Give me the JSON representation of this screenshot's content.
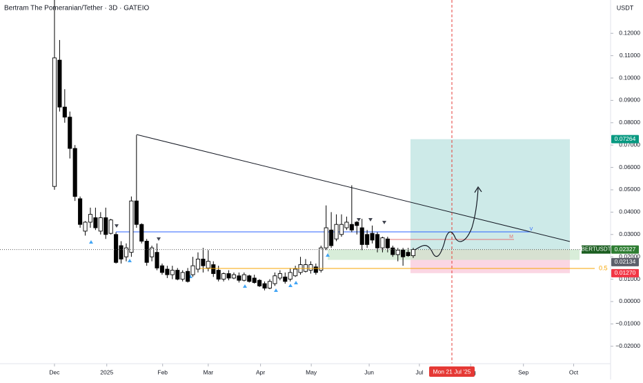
{
  "chart_data": {
    "type": "candlestick",
    "title": "Bertram The Pomeranian/Tether · 3D · GATEIO",
    "y_axis_label": "USDT",
    "open": [
      0.0515,
      0.108,
      0.087,
      0.0825,
      0.0685,
      0.046,
      0.0315,
      0.0355,
      0.0375,
      0.0315,
      0.0375,
      0.0305,
      0.03,
      0.025,
      0.02,
      0.022,
      0.045,
      0.0345,
      0.027,
      0.02,
      0.022,
      0.016,
      0.0145,
      0.012,
      0.014,
      0.01,
      0.0135,
      0.012,
      0.0145,
      0.019,
      0.015,
      0.0165,
      0.014,
      0.01,
      0.0125,
      0.0105,
      0.0115,
      0.0095,
      0.0115,
      0.0105,
      0.0095,
      0.008,
      0.006,
      0.008,
      0.0105,
      0.011,
      0.01,
      0.0115,
      0.013,
      0.0135,
      0.014,
      0.0155,
      0.014,
      0.024,
      0.032,
      0.028,
      0.03,
      0.033,
      0.0345,
      0.0355,
      0.033,
      0.03,
      0.0305,
      0.03,
      0.024,
      0.028,
      0.024,
      0.021,
      0.023,
      0.022,
      0.0205
    ],
    "high": [
      0.135,
      0.117,
      0.095,
      0.085,
      0.07,
      0.047,
      0.036,
      0.042,
      0.042,
      0.04,
      0.042,
      0.037,
      0.031,
      0.027,
      0.026,
      0.047,
      0.0745,
      0.035,
      0.028,
      0.025,
      0.026,
      0.017,
      0.016,
      0.016,
      0.015,
      0.014,
      0.015,
      0.02,
      0.022,
      0.024,
      0.023,
      0.018,
      0.016,
      0.013,
      0.014,
      0.013,
      0.013,
      0.013,
      0.012,
      0.012,
      0.01,
      0.009,
      0.01,
      0.013,
      0.014,
      0.013,
      0.015,
      0.016,
      0.02,
      0.019,
      0.018,
      0.017,
      0.025,
      0.043,
      0.04,
      0.039,
      0.039,
      0.038,
      0.052,
      0.036,
      0.037,
      0.032,
      0.034,
      0.031,
      0.029,
      0.029,
      0.025,
      0.024,
      0.024,
      0.024,
      0.024
    ],
    "low": [
      0.05,
      0.085,
      0.08,
      0.064,
      0.045,
      0.033,
      0.0295,
      0.033,
      0.032,
      0.03,
      0.028,
      0.03,
      0.017,
      0.017,
      0.018,
      0.02,
      0.033,
      0.026,
      0.016,
      0.018,
      0.014,
      0.012,
      0.0105,
      0.01,
      0.0095,
      0.009,
      0.0085,
      0.011,
      0.013,
      0.013,
      0.0135,
      0.011,
      0.009,
      0.009,
      0.0095,
      0.01,
      0.0085,
      0.009,
      0.0085,
      0.008,
      0.0065,
      0.005,
      0.0055,
      0.007,
      0.0095,
      0.008,
      0.009,
      0.011,
      0.012,
      0.013,
      0.0125,
      0.012,
      0.013,
      0.023,
      0.024,
      0.027,
      0.029,
      0.032,
      0.031,
      0.03,
      0.023,
      0.024,
      0.026,
      0.022,
      0.022,
      0.022,
      0.02,
      0.018,
      0.016,
      0.02,
      0.0195
    ],
    "close": [
      0.109,
      0.087,
      0.0825,
      0.0685,
      0.047,
      0.0345,
      0.0355,
      0.039,
      0.033,
      0.0375,
      0.03,
      0.0365,
      0.0175,
      0.019,
      0.024,
      0.045,
      0.0345,
      0.027,
      0.0175,
      0.024,
      0.015,
      0.013,
      0.012,
      0.014,
      0.01,
      0.013,
      0.009,
      0.016,
      0.019,
      0.016,
      0.018,
      0.0125,
      0.01,
      0.0125,
      0.0105,
      0.012,
      0.0095,
      0.012,
      0.009,
      0.0085,
      0.007,
      0.006,
      0.009,
      0.0115,
      0.0125,
      0.009,
      0.013,
      0.0145,
      0.0165,
      0.0165,
      0.0165,
      0.013,
      0.024,
      0.033,
      0.025,
      0.0345,
      0.0345,
      0.0355,
      0.032,
      0.034,
      0.0255,
      0.0255,
      0.0275,
      0.024,
      0.0285,
      0.024,
      0.021,
      0.023,
      0.02,
      0.0205,
      0.02327
    ],
    "xlim": [
      -10.63,
      108.5
    ],
    "xticks": [
      {
        "value": 0,
        "label": "Dec"
      },
      {
        "value": 10.2,
        "label": "2025"
      },
      {
        "value": 21.1,
        "label": "Feb"
      },
      {
        "value": 30,
        "label": "Mar"
      },
      {
        "value": 40.2,
        "label": "Apr"
      },
      {
        "value": 50.1,
        "label": "May"
      },
      {
        "value": 61.4,
        "label": "Jun"
      },
      {
        "value": 71.2,
        "label": "Jul"
      },
      {
        "value": 81.2,
        "label": "Aug"
      },
      {
        "value": 91.5,
        "label": "Sep"
      },
      {
        "value": 101.3,
        "label": "Oct"
      }
    ],
    "ylim": [
      -0.0278,
      0.1349
    ],
    "yticks": [
      {
        "value": 0.12,
        "label": "0.12000"
      },
      {
        "value": 0.11,
        "label": "0.11000"
      },
      {
        "value": 0.1,
        "label": "0.10000"
      },
      {
        "value": 0.09,
        "label": "0.09000"
      },
      {
        "value": 0.08,
        "label": "0.08000"
      },
      {
        "value": 0.07,
        "label": "0.07000"
      },
      {
        "value": 0.06,
        "label": "0.06000"
      },
      {
        "value": 0.05,
        "label": "0.05000"
      },
      {
        "value": 0.04,
        "label": "0.04000"
      },
      {
        "value": 0.03,
        "label": "0.03000"
      },
      {
        "value": 0.02,
        "label": "0.02000"
      },
      {
        "value": 0.01,
        "label": "0.01000"
      },
      {
        "value": 0,
        "label": "0.00000"
      },
      {
        "value": -0.01,
        "label": "−0.01000"
      },
      {
        "value": -0.02,
        "label": "−0.02000"
      }
    ],
    "symbol": "BERTUSDT",
    "last_price": 0.02327,
    "target_price": 0.07264,
    "entry_price": 0.02134,
    "stop_price": {
      "value": 0.0127,
      "label": "0.01270"
    },
    "fib_label": "0.5",
    "cursor_date": "Mon 21 Jul '25",
    "annotations": [
      "M",
      "V"
    ]
  }
}
